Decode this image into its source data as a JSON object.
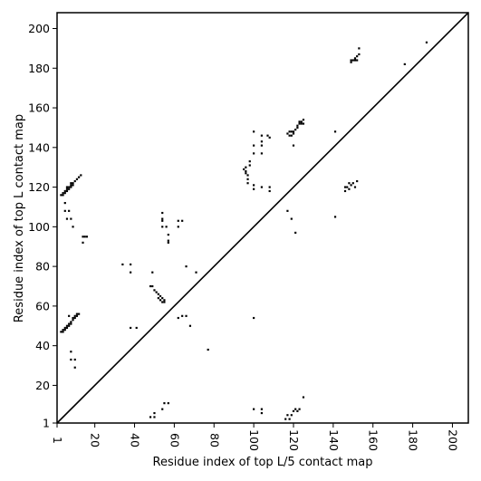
{
  "chart_data": {
    "type": "scatter",
    "title": "",
    "xlabel": "Residue index of top L/5 contact map",
    "ylabel": "Residue index of top L contact map",
    "xlim": [
      1,
      208
    ],
    "ylim": [
      1,
      208
    ],
    "x_ticks": [
      1,
      20,
      40,
      60,
      80,
      100,
      120,
      140,
      160,
      180,
      200
    ],
    "y_ticks": [
      1,
      20,
      40,
      60,
      80,
      100,
      120,
      140,
      160,
      180,
      200
    ],
    "grid": false,
    "legend": "none",
    "diagonal": true,
    "marker": "square",
    "color": "#000000",
    "points": [
      [
        3,
        116
      ],
      [
        4,
        117
      ],
      [
        5,
        118
      ],
      [
        6,
        119
      ],
      [
        7,
        120
      ],
      [
        8,
        121
      ],
      [
        9,
        122
      ],
      [
        10,
        123
      ],
      [
        11,
        124
      ],
      [
        12,
        125
      ],
      [
        13,
        126
      ],
      [
        5,
        117
      ],
      [
        6,
        118
      ],
      [
        7,
        119
      ],
      [
        8,
        120
      ],
      [
        9,
        121
      ],
      [
        4,
        116
      ],
      [
        6,
        120
      ],
      [
        8,
        122
      ],
      [
        5,
        112
      ],
      [
        5,
        108
      ],
      [
        7,
        108
      ],
      [
        6,
        104
      ],
      [
        8,
        104
      ],
      [
        9,
        100
      ],
      [
        3,
        47
      ],
      [
        4,
        48
      ],
      [
        5,
        49
      ],
      [
        6,
        50
      ],
      [
        7,
        51
      ],
      [
        8,
        52
      ],
      [
        9,
        53
      ],
      [
        10,
        54
      ],
      [
        11,
        55
      ],
      [
        12,
        56
      ],
      [
        4,
        47
      ],
      [
        5,
        48
      ],
      [
        6,
        49
      ],
      [
        7,
        50
      ],
      [
        8,
        51
      ],
      [
        9,
        54
      ],
      [
        10,
        55
      ],
      [
        11,
        56
      ],
      [
        7,
        55
      ],
      [
        8,
        37
      ],
      [
        8,
        33
      ],
      [
        10,
        33
      ],
      [
        10,
        29
      ],
      [
        14,
        95
      ],
      [
        16,
        95
      ],
      [
        14,
        92
      ],
      [
        15,
        95
      ],
      [
        34,
        81
      ],
      [
        38,
        81
      ],
      [
        38,
        77
      ],
      [
        38,
        49
      ],
      [
        41,
        49
      ],
      [
        48,
        70
      ],
      [
        49,
        70
      ],
      [
        50,
        68
      ],
      [
        51,
        67
      ],
      [
        52,
        66
      ],
      [
        53,
        65
      ],
      [
        54,
        64
      ],
      [
        55,
        63
      ],
      [
        52,
        64
      ],
      [
        53,
        63
      ],
      [
        54,
        62
      ],
      [
        55,
        62
      ],
      [
        49,
        77
      ],
      [
        54,
        107
      ],
      [
        54,
        104
      ],
      [
        54,
        103
      ],
      [
        54,
        100
      ],
      [
        56,
        100
      ],
      [
        57,
        96
      ],
      [
        57,
        93
      ],
      [
        57,
        92
      ],
      [
        62,
        103
      ],
      [
        64,
        103
      ],
      [
        62,
        100
      ],
      [
        62,
        54
      ],
      [
        64,
        55
      ],
      [
        66,
        55
      ],
      [
        68,
        50
      ],
      [
        66,
        80
      ],
      [
        71,
        77
      ],
      [
        77,
        38
      ],
      [
        48,
        4
      ],
      [
        50,
        4
      ],
      [
        50,
        6
      ],
      [
        54,
        8
      ],
      [
        55,
        11
      ],
      [
        57,
        11
      ],
      [
        95,
        129
      ],
      [
        96,
        128
      ],
      [
        96,
        127
      ],
      [
        97,
        126
      ],
      [
        97,
        124
      ],
      [
        97,
        122
      ],
      [
        98,
        131
      ],
      [
        98,
        133
      ],
      [
        96,
        130
      ],
      [
        100,
        148
      ],
      [
        100,
        141
      ],
      [
        100,
        137
      ],
      [
        100,
        121
      ],
      [
        100,
        119
      ],
      [
        104,
        146
      ],
      [
        104,
        143
      ],
      [
        104,
        141
      ],
      [
        104,
        137
      ],
      [
        104,
        120
      ],
      [
        107,
        146
      ],
      [
        108,
        145
      ],
      [
        108,
        120
      ],
      [
        108,
        118
      ],
      [
        100,
        54
      ],
      [
        100,
        8
      ],
      [
        104,
        8
      ],
      [
        104,
        6
      ],
      [
        117,
        147
      ],
      [
        118,
        146
      ],
      [
        119,
        148
      ],
      [
        120,
        148
      ],
      [
        121,
        149
      ],
      [
        122,
        151
      ],
      [
        123,
        152
      ],
      [
        124,
        153
      ],
      [
        125,
        154
      ],
      [
        118,
        148
      ],
      [
        119,
        146
      ],
      [
        120,
        147
      ],
      [
        122,
        150
      ],
      [
        123,
        153
      ],
      [
        124,
        152
      ],
      [
        125,
        152
      ],
      [
        120,
        141
      ],
      [
        117,
        108
      ],
      [
        119,
        104
      ],
      [
        121,
        97
      ],
      [
        117,
        5
      ],
      [
        118,
        3
      ],
      [
        119,
        5
      ],
      [
        120,
        7
      ],
      [
        121,
        8
      ],
      [
        122,
        7
      ],
      [
        123,
        8
      ],
      [
        125,
        14
      ],
      [
        116,
        3
      ],
      [
        141,
        148
      ],
      [
        141,
        105
      ],
      [
        146,
        118
      ],
      [
        147,
        120
      ],
      [
        148,
        119
      ],
      [
        149,
        121
      ],
      [
        150,
        122
      ],
      [
        151,
        120
      ],
      [
        152,
        123
      ],
      [
        146,
        120
      ],
      [
        148,
        122
      ],
      [
        149,
        183
      ],
      [
        150,
        184
      ],
      [
        151,
        185
      ],
      [
        152,
        186
      ],
      [
        153,
        187
      ],
      [
        149,
        184
      ],
      [
        151,
        184
      ],
      [
        153,
        190
      ],
      [
        152,
        184
      ],
      [
        176,
        182
      ],
      [
        187,
        193
      ]
    ]
  }
}
